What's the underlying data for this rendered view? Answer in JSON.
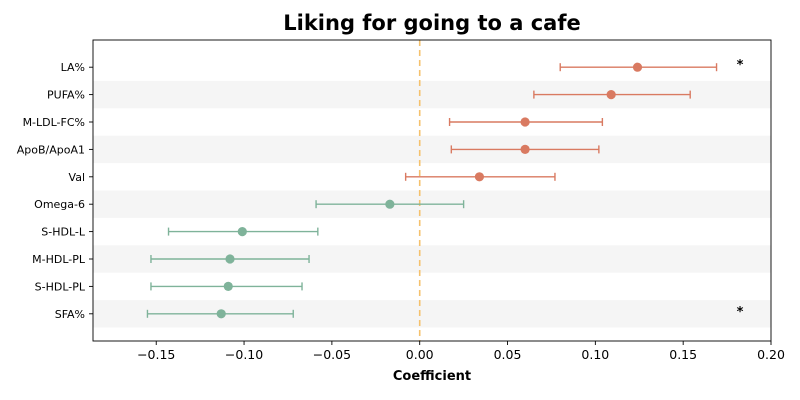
{
  "chart_data": {
    "type": "forest",
    "title": "Liking for going to a cafe",
    "xlabel": "Coefficient",
    "xlim": [
      -0.186,
      0.2
    ],
    "xticks": [
      -0.15,
      -0.1,
      -0.05,
      0.0,
      0.05,
      0.1,
      0.15,
      0.2
    ],
    "xtick_labels": [
      "−0.15",
      "−0.10",
      "−0.05",
      "0.00",
      "0.05",
      "0.10",
      "0.15",
      "0.20"
    ],
    "reference_line": {
      "x": 0.0,
      "color": "#f5c16c",
      "style": "dashed"
    },
    "colors": {
      "positive": "#d97a61",
      "negative": "#7fb39a",
      "band": "#f5f5f5"
    },
    "rows": [
      {
        "label": "LA%",
        "coef": 0.124,
        "lo": 0.08,
        "hi": 0.169,
        "sig": "*"
      },
      {
        "label": "PUFA%",
        "coef": 0.109,
        "lo": 0.065,
        "hi": 0.154,
        "sig": ""
      },
      {
        "label": "M-LDL-FC%",
        "coef": 0.06,
        "lo": 0.017,
        "hi": 0.104,
        "sig": ""
      },
      {
        "label": "ApoB/ApoA1",
        "coef": 0.06,
        "lo": 0.018,
        "hi": 0.102,
        "sig": ""
      },
      {
        "label": "Val",
        "coef": 0.034,
        "lo": -0.008,
        "hi": 0.077,
        "sig": ""
      },
      {
        "label": "Omega-6",
        "coef": -0.017,
        "lo": -0.059,
        "hi": 0.025,
        "sig": ""
      },
      {
        "label": "S-HDL-L",
        "coef": -0.101,
        "lo": -0.143,
        "hi": -0.058,
        "sig": ""
      },
      {
        "label": "M-HDL-PL",
        "coef": -0.108,
        "lo": -0.153,
        "hi": -0.063,
        "sig": ""
      },
      {
        "label": "S-HDL-PL",
        "coef": -0.109,
        "lo": -0.153,
        "hi": -0.067,
        "sig": ""
      },
      {
        "label": "SFA%",
        "coef": -0.113,
        "lo": -0.155,
        "hi": -0.072,
        "sig": "*"
      }
    ]
  }
}
